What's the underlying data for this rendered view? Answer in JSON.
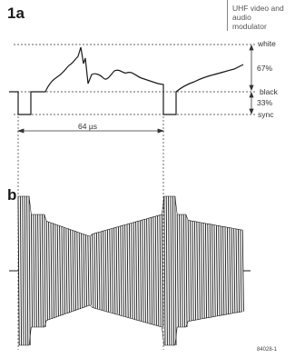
{
  "header": {
    "title": "UHF video and audio\nmodulator"
  },
  "figures": {
    "a_label": "1a",
    "b_label": "b"
  },
  "levels": {
    "white": "white",
    "black": "black",
    "sync": "sync"
  },
  "percentages": {
    "upper": "67%",
    "lower": "33%"
  },
  "period": "64 µs",
  "figure_code": "84028-1"
}
